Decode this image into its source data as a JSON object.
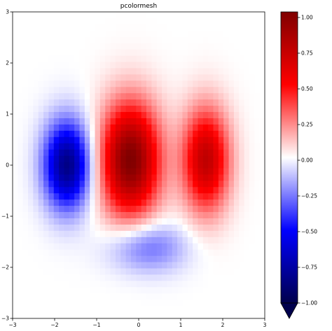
{
  "chart_data": {
    "type": "heatmap",
    "title": "pcolormesh",
    "xlim": [
      -3,
      3
    ],
    "ylim": [
      -3,
      3
    ],
    "x_ticks": [
      "−3",
      "−2",
      "−1",
      "0",
      "1",
      "2",
      "3"
    ],
    "y_ticks": [
      "−3",
      "−2",
      "−1",
      "0",
      "1",
      "2",
      "3"
    ],
    "grid": false,
    "colormap": "seismic",
    "colorbar": {
      "vmin": -1.0,
      "vmax": 1.0,
      "ticks": [
        "−1.00",
        "−0.75",
        "−0.50",
        "−0.25",
        "0.00",
        "0.25",
        "0.50",
        "0.75",
        "1.00"
      ],
      "extend": "min",
      "placement": "right"
    },
    "grid_resolution": 49,
    "values_note_visible": "",
    "regions": [
      {
        "name": "",
        "center_x": -1.7,
        "center_y": 0.0,
        "peak_value": -0.85
      },
      {
        "name": "",
        "center_x": -0.2,
        "center_y": 0.1,
        "peak_value": 1.0
      },
      {
        "name": "",
        "center_x": 1.6,
        "center_y": 0.1,
        "peak_value": 0.75
      },
      {
        "name": "",
        "center_x": 0.2,
        "center_y": -1.6,
        "peak_value": -0.3
      }
    ]
  }
}
